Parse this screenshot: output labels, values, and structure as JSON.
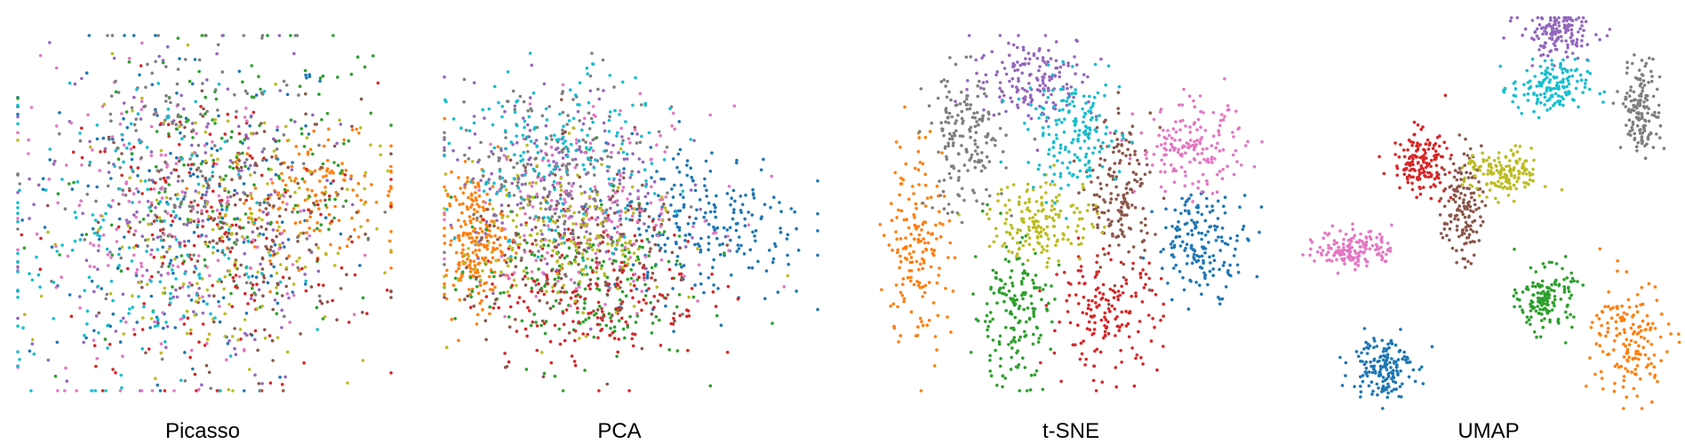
{
  "chart_data": [
    {
      "type": "scatter",
      "title": "Picasso",
      "grid": false,
      "axes_visible": false,
      "xlim": [
        0,
        100
      ],
      "ylim": [
        0,
        100
      ],
      "clusters": [
        {
          "color": "#1f77b4",
          "x": 45,
          "y": 50,
          "sx": 22,
          "sy": 26,
          "n": 180
        },
        {
          "color": "#ff7f0e",
          "x": 80,
          "y": 55,
          "sx": 12,
          "sy": 8,
          "n": 150
        },
        {
          "color": "#2ca02c",
          "x": 60,
          "y": 60,
          "sx": 22,
          "sy": 22,
          "n": 170
        },
        {
          "color": "#d62728",
          "x": 52,
          "y": 42,
          "sx": 22,
          "sy": 22,
          "n": 170
        },
        {
          "color": "#9467bd",
          "x": 42,
          "y": 50,
          "sx": 20,
          "sy": 25,
          "n": 170
        },
        {
          "color": "#8c564b",
          "x": 62,
          "y": 45,
          "sx": 18,
          "sy": 18,
          "n": 170
        },
        {
          "color": "#e377c2",
          "x": 38,
          "y": 45,
          "sx": 20,
          "sy": 22,
          "n": 170
        },
        {
          "color": "#7f7f7f",
          "x": 45,
          "y": 60,
          "sx": 18,
          "sy": 24,
          "n": 170
        },
        {
          "color": "#bcbd22",
          "x": 55,
          "y": 45,
          "sx": 20,
          "sy": 20,
          "n": 170
        },
        {
          "color": "#17becf",
          "x": 30,
          "y": 40,
          "sx": 18,
          "sy": 22,
          "n": 170
        }
      ]
    },
    {
      "type": "scatter",
      "title": "PCA",
      "grid": false,
      "axes_visible": false,
      "xlim": [
        0,
        100
      ],
      "ylim": [
        0,
        100
      ],
      "clusters": [
        {
          "color": "#1f77b4",
          "x": 70,
          "y": 50,
          "sx": 14,
          "sy": 12,
          "n": 240
        },
        {
          "color": "#ff7f0e",
          "x": 8,
          "y": 45,
          "sx": 4,
          "sy": 10,
          "n": 220
        },
        {
          "color": "#2ca02c",
          "x": 35,
          "y": 32,
          "sx": 16,
          "sy": 12,
          "n": 200
        },
        {
          "color": "#d62728",
          "x": 40,
          "y": 30,
          "sx": 15,
          "sy": 11,
          "n": 200
        },
        {
          "color": "#9467bd",
          "x": 30,
          "y": 62,
          "sx": 15,
          "sy": 14,
          "n": 180
        },
        {
          "color": "#8c564b",
          "x": 38,
          "y": 40,
          "sx": 16,
          "sy": 14,
          "n": 180
        },
        {
          "color": "#e377c2",
          "x": 40,
          "y": 55,
          "sx": 16,
          "sy": 14,
          "n": 180
        },
        {
          "color": "#7f7f7f",
          "x": 28,
          "y": 65,
          "sx": 14,
          "sy": 14,
          "n": 180
        },
        {
          "color": "#bcbd22",
          "x": 32,
          "y": 45,
          "sx": 14,
          "sy": 12,
          "n": 180
        },
        {
          "color": "#17becf",
          "x": 30,
          "y": 68,
          "sx": 14,
          "sy": 13,
          "n": 180
        }
      ]
    },
    {
      "type": "scatter",
      "title": "t-SNE",
      "grid": false,
      "axes_visible": false,
      "xlim": [
        0,
        100
      ],
      "ylim": [
        0,
        100
      ],
      "clusters": [
        {
          "color": "#1f77b4",
          "x": 85,
          "y": 42,
          "sx": 6,
          "sy": 7,
          "n": 170
        },
        {
          "color": "#ff7f0e",
          "x": 12,
          "y": 42,
          "sx": 4,
          "sy": 16,
          "n": 170
        },
        {
          "color": "#2ca02c",
          "x": 36,
          "y": 22,
          "sx": 5,
          "sy": 10,
          "n": 170
        },
        {
          "color": "#d62728",
          "x": 60,
          "y": 22,
          "sx": 7,
          "sy": 8,
          "n": 170
        },
        {
          "color": "#9467bd",
          "x": 42,
          "y": 88,
          "sx": 8,
          "sy": 6,
          "n": 170
        },
        {
          "color": "#8c564b",
          "x": 64,
          "y": 55,
          "sx": 4,
          "sy": 11,
          "n": 170
        },
        {
          "color": "#e377c2",
          "x": 82,
          "y": 68,
          "sx": 7,
          "sy": 6,
          "n": 170
        },
        {
          "color": "#7f7f7f",
          "x": 24,
          "y": 70,
          "sx": 5,
          "sy": 10,
          "n": 170
        },
        {
          "color": "#bcbd22",
          "x": 44,
          "y": 48,
          "sx": 7,
          "sy": 6,
          "n": 170
        },
        {
          "color": "#17becf",
          "x": 52,
          "y": 72,
          "sx": 6,
          "sy": 8,
          "n": 170
        }
      ]
    },
    {
      "type": "scatter",
      "title": "UMAP",
      "grid": false,
      "axes_visible": false,
      "xlim": [
        0,
        100
      ],
      "ylim": [
        0,
        100
      ],
      "clusters": [
        {
          "color": "#1f77b4",
          "x": 22,
          "y": 11,
          "sx": 4,
          "sy": 4,
          "n": 160
        },
        {
          "color": "#ff7f0e",
          "x": 87,
          "y": 17,
          "sx": 5,
          "sy": 8,
          "n": 160
        },
        {
          "color": "#2ca02c",
          "x": 65,
          "y": 28,
          "sx": 3.5,
          "sy": 4,
          "n": 150
        },
        {
          "color": "#d62728",
          "x": 32,
          "y": 63,
          "sx": 3.5,
          "sy": 4,
          "n": 150
        },
        {
          "color": "#9467bd",
          "x": 68,
          "y": 96,
          "sx": 5,
          "sy": 3,
          "n": 150
        },
        {
          "color": "#8c564b",
          "x": 43,
          "y": 52,
          "sx": 2.5,
          "sy": 7,
          "n": 150
        },
        {
          "color": "#e377c2",
          "x": 15,
          "y": 41,
          "sx": 5,
          "sy": 2.5,
          "n": 150
        },
        {
          "color": "#7f7f7f",
          "x": 90,
          "y": 77,
          "sx": 2.5,
          "sy": 6,
          "n": 150
        },
        {
          "color": "#bcbd22",
          "x": 54,
          "y": 60,
          "sx": 5,
          "sy": 3,
          "n": 150
        },
        {
          "color": "#17becf",
          "x": 66,
          "y": 82,
          "sx": 5,
          "sy": 3.5,
          "n": 150
        }
      ]
    }
  ]
}
